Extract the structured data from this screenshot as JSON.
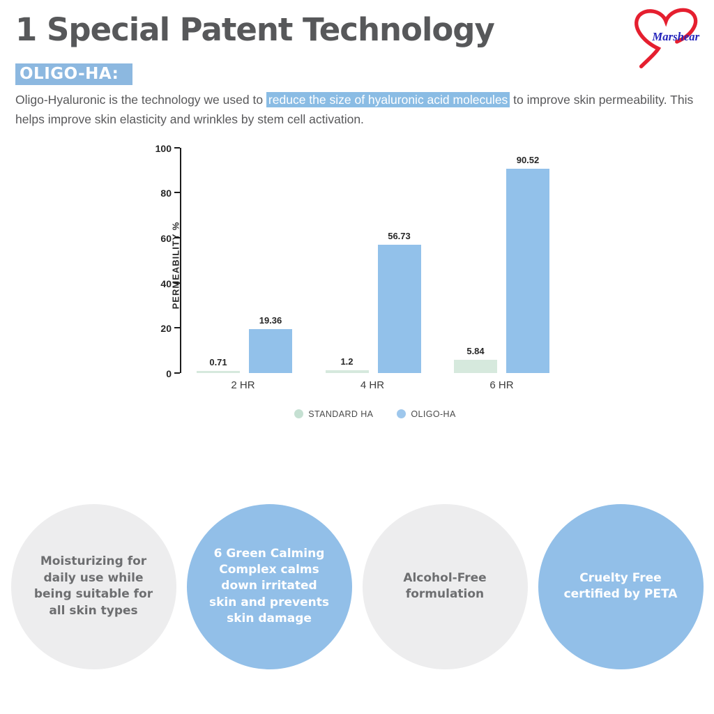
{
  "header": {
    "title": "1 Special Patent Technology"
  },
  "logo": {
    "brand": "Marshear",
    "heart_color": "#e51f2f",
    "text_color": "#2424bb"
  },
  "intro": {
    "heading": "OLIGO-HA:",
    "body_before": "Oligo-Hyaluronic is the technology we used to ",
    "body_highlight": "reduce the size of hyaluronic acid molecules",
    "body_after": " to improve skin permeability. This helps improve skin elasticity and wrinkles by stem cell activation."
  },
  "chart_data": {
    "type": "bar",
    "categories": [
      "2 HR",
      "4 HR",
      "6 HR"
    ],
    "series": [
      {
        "name": "STANDARD HA",
        "color": "#d6e9dd",
        "legend_color": "#c5e0d2",
        "values": [
          0.71,
          1.2,
          5.84
        ]
      },
      {
        "name": "OLIGO-HA",
        "color": "#92c1ea",
        "legend_color": "#9ec7ec",
        "values": [
          19.36,
          56.73,
          90.52
        ]
      }
    ],
    "title": "",
    "xlabel": "",
    "ylabel": "PERMEABILITY %",
    "ylim": [
      0,
      100
    ],
    "yticks": [
      0,
      20,
      40,
      60,
      80,
      100
    ],
    "grid": false,
    "legend_position": "bottom"
  },
  "features": [
    {
      "text": "Moisturizing for daily use while being suitable for all skin types",
      "style": "gray"
    },
    {
      "text": "6 Green Calming Complex calms down irritated skin and prevents skin damage",
      "style": "blue"
    },
    {
      "text": "Alcohol-Free formulation",
      "style": "gray"
    },
    {
      "text": "Cruelty Free certified by PETA",
      "style": "blue"
    }
  ],
  "colors": {
    "title_text": "#57585a",
    "heading_highlight": "#8cb8e0",
    "inline_highlight": "#8abce4",
    "bar_standard": "#d6e9dd",
    "bar_oligo": "#92c1ea",
    "circle_gray": "#ededee",
    "circle_blue": "#92bfe8"
  }
}
